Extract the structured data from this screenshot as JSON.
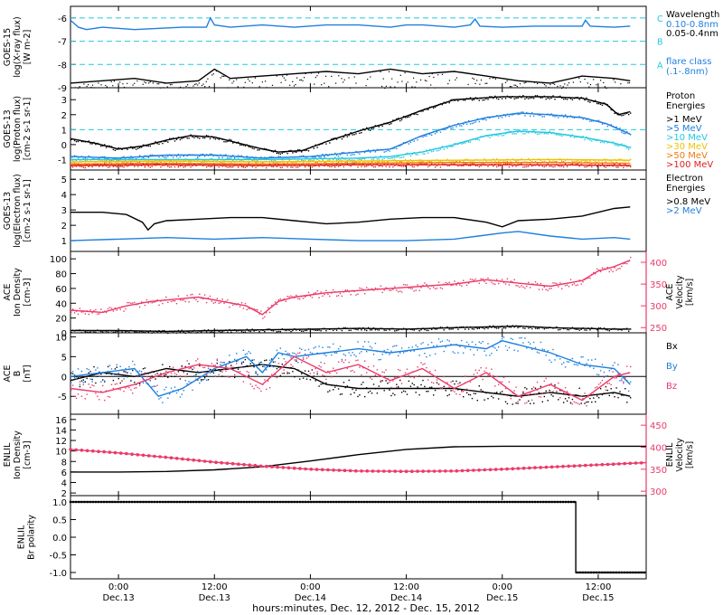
{
  "figure": {
    "xaxis_caption": "hours:minutes, Dec. 12, 2012 - Dec. 15, 2012",
    "x_ticks": [
      {
        "x": -18,
        "time": "0:00",
        "date": "Dec.13"
      },
      {
        "x": -6,
        "time": "12:00",
        "date": "Dec.13"
      },
      {
        "x": 6,
        "time": "0:00",
        "date": "Dec.14"
      },
      {
        "x": 18,
        "time": "12:00",
        "date": "Dec.14"
      },
      {
        "x": 30,
        "time": "0:00",
        "date": "Dec.15"
      },
      {
        "x": 42,
        "time": "12:00",
        "date": "Dec.15"
      }
    ]
  },
  "colors": {
    "black": "#000000",
    "blue": "#1e7fe0",
    "pink": "#ea3a6a",
    "cyan": "#22c8e0",
    "teal": "#0ab3a0",
    "green": "#70d040",
    "yellow": "#f0c000",
    "orange": "#f07a10",
    "red": "#e02020"
  },
  "chart_data": [
    {
      "type": "line",
      "id": "goes15-xray",
      "ylabel_lines": [
        "GOES-15",
        "log(X-ray flux)",
        "[W m-2]"
      ],
      "xlim": [
        -24,
        48
      ],
      "ylim": [
        -9,
        -5.5
      ],
      "y_ticks": [
        -9,
        -8,
        -7,
        -6
      ],
      "reference_lines": [
        {
          "y": -6,
          "label": "C"
        },
        {
          "y": -7,
          "label": "B"
        },
        {
          "y": -8,
          "label": "A"
        }
      ],
      "legend": {
        "title": "Wavelength",
        "entries": [
          {
            "label": "0.10-0.8nm",
            "color": "blue"
          },
          {
            "label": "0.05-0.4nm",
            "color": "black"
          }
        ],
        "note_lines": [
          "flare class",
          "(.1-.8nm)"
        ]
      },
      "series": [
        {
          "name": "0.10-0.8nm",
          "color": "blue",
          "x": [
            -24,
            -23,
            -22,
            -20,
            -16,
            -10,
            -7,
            -6.5,
            -6,
            -4,
            0,
            4,
            8,
            12,
            16,
            18,
            20,
            24,
            26,
            26.6,
            27.2,
            30,
            34,
            38,
            40,
            40.4,
            41,
            44,
            46
          ],
          "y": [
            -6.1,
            -6.4,
            -6.5,
            -6.4,
            -6.5,
            -6.4,
            -6.4,
            -6.0,
            -6.3,
            -6.4,
            -6.3,
            -6.4,
            -6.3,
            -6.3,
            -6.4,
            -6.3,
            -6.3,
            -6.4,
            -6.3,
            -6.05,
            -6.35,
            -6.4,
            -6.35,
            -6.35,
            -6.35,
            -6.1,
            -6.35,
            -6.4,
            -6.35
          ]
        },
        {
          "name": "0.05-0.4nm",
          "color": "black",
          "x": [
            -24,
            -20,
            -16,
            -12,
            -8,
            -6,
            -4,
            0,
            4,
            8,
            12,
            16,
            20,
            24,
            28,
            32,
            36,
            40,
            44,
            46
          ],
          "y": [
            -8.8,
            -8.7,
            -8.6,
            -8.8,
            -8.7,
            -8.2,
            -8.6,
            -8.5,
            -8.4,
            -8.3,
            -8.4,
            -8.2,
            -8.4,
            -8.3,
            -8.5,
            -8.7,
            -8.8,
            -8.5,
            -8.6,
            -8.7
          ]
        }
      ]
    },
    {
      "type": "line",
      "id": "goes13-proton",
      "ylabel_lines": [
        "GOES-13",
        "log(Proton flux)",
        "[cm-2 s-1 sr-1]"
      ],
      "xlim": [
        -24,
        48
      ],
      "ylim": [
        -1.7,
        3.8
      ],
      "y_ticks": [
        -1,
        0,
        1,
        2,
        3
      ],
      "reference_lines": [
        {
          "y": 1,
          "label": ""
        }
      ],
      "legend": {
        "title_lines": [
          "Proton",
          "Energies"
        ],
        "entries": [
          {
            "label": ">1 MeV",
            "color": "black"
          },
          {
            "label": ">5 MeV",
            "color": "blue"
          },
          {
            "label": ">10 MeV",
            "color": "cyan"
          },
          {
            "label": ">30 MeV",
            "color": "yellow"
          },
          {
            "label": ">50 MeV",
            "color": "orange"
          },
          {
            "label": ">100 MeV",
            "color": "red"
          }
        ]
      },
      "series": [
        {
          "name": ">1 MeV",
          "color": "black",
          "x": [
            -24,
            -21,
            -18,
            -15,
            -12,
            -9,
            -6,
            -3,
            0,
            2,
            5,
            8,
            12,
            16,
            20,
            24,
            27,
            30,
            33,
            36,
            40,
            43,
            44.5,
            46
          ],
          "y": [
            0.4,
            0.1,
            -0.3,
            -0.1,
            0.3,
            0.6,
            0.5,
            0.1,
            -0.3,
            -0.5,
            -0.4,
            0.2,
            0.9,
            1.5,
            2.3,
            3.0,
            3.1,
            3.2,
            3.2,
            3.2,
            3.1,
            2.7,
            2.0,
            2.2
          ]
        },
        {
          "name": ">5 MeV",
          "color": "blue",
          "x": [
            -24,
            -18,
            -12,
            -6,
            0,
            6,
            12,
            16,
            20,
            24,
            28,
            32,
            36,
            40,
            43,
            46
          ],
          "y": [
            -0.8,
            -0.9,
            -0.7,
            -0.7,
            -0.9,
            -0.8,
            -0.5,
            -0.3,
            0.6,
            1.3,
            1.8,
            2.1,
            2.0,
            1.8,
            1.4,
            0.7
          ]
        },
        {
          "name": ">10 MeV",
          "color": "cyan",
          "x": [
            -24,
            -12,
            0,
            12,
            16,
            20,
            24,
            28,
            32,
            36,
            40,
            44,
            46
          ],
          "y": [
            -1.0,
            -1.0,
            -1.0,
            -0.9,
            -0.8,
            -0.5,
            0.0,
            0.6,
            0.9,
            0.8,
            0.5,
            0.1,
            -0.2
          ]
        },
        {
          "name": ">30 MeV",
          "color": "yellow",
          "x": [
            -24,
            -12,
            0,
            12,
            24,
            36,
            46
          ],
          "y": [
            -1.15,
            -1.1,
            -1.15,
            -1.1,
            -1.05,
            -1.0,
            -1.05
          ]
        },
        {
          "name": ">50 MeV",
          "color": "orange",
          "x": [
            -24,
            -12,
            0,
            12,
            24,
            36,
            46
          ],
          "y": [
            -1.3,
            -1.25,
            -1.3,
            -1.25,
            -1.2,
            -1.2,
            -1.25
          ]
        },
        {
          "name": ">100 MeV",
          "color": "red",
          "x": [
            -24,
            -12,
            0,
            12,
            24,
            36,
            46
          ],
          "y": [
            -1.4,
            -1.35,
            -1.4,
            -1.35,
            -1.35,
            -1.35,
            -1.4
          ]
        }
      ]
    },
    {
      "type": "line",
      "id": "goes13-electron",
      "ylabel_lines": [
        "GOES-13",
        "log(Electron flux)",
        "[cm-2 s-1 sr-1]"
      ],
      "xlim": [
        -24,
        48
      ],
      "ylim": [
        0.3,
        5.6
      ],
      "y_ticks": [
        1,
        2,
        3,
        4,
        5
      ],
      "reference_lines": [
        {
          "y": 5,
          "label": ""
        }
      ],
      "legend": {
        "title_lines": [
          "Electron",
          "Energies"
        ],
        "entries": [
          {
            "label": ">0.8 MeV",
            "color": "black"
          },
          {
            "label": ">2 MeV",
            "color": "blue"
          }
        ]
      },
      "series": [
        {
          "name": ">0.8 MeV",
          "color": "black",
          "x": [
            -24,
            -20,
            -17,
            -15,
            -14.3,
            -13.5,
            -12,
            -8,
            -4,
            0,
            4,
            8,
            12,
            16,
            20,
            24,
            28,
            30,
            32,
            36,
            40,
            44,
            46
          ],
          "y": [
            2.85,
            2.85,
            2.7,
            2.2,
            1.7,
            2.1,
            2.3,
            2.4,
            2.5,
            2.5,
            2.3,
            2.1,
            2.2,
            2.4,
            2.5,
            2.5,
            2.2,
            1.9,
            2.3,
            2.4,
            2.6,
            3.1,
            3.2
          ]
        },
        {
          "name": ">2 MeV",
          "color": "blue",
          "x": [
            -24,
            -18,
            -12,
            -6,
            0,
            6,
            12,
            18,
            24,
            27,
            30,
            32,
            36,
            40,
            44,
            46
          ],
          "y": [
            1.0,
            1.1,
            1.2,
            1.1,
            1.2,
            1.1,
            1.0,
            1.0,
            1.1,
            1.3,
            1.5,
            1.6,
            1.3,
            1.1,
            1.2,
            1.1
          ]
        }
      ]
    },
    {
      "type": "line",
      "id": "ace-plasma",
      "ylabel_lines": [
        "ACE",
        "Ion Density",
        "[cm-3]"
      ],
      "ylabel2_lines": [
        "ACE",
        "Velocity",
        "[km/s]"
      ],
      "xlim": [
        -24,
        48
      ],
      "ylim": [
        0,
        110
      ],
      "y_ticks": [
        0,
        20,
        40,
        60,
        80,
        100
      ],
      "ylim2": [
        238,
        425
      ],
      "y2_ticks": [
        250,
        300,
        350,
        400
      ],
      "series": [
        {
          "name": "Ion Density",
          "color": "black",
          "axis": "left",
          "x": [
            -24,
            -18,
            -12,
            -6,
            0,
            6,
            12,
            18,
            24,
            28,
            32,
            36,
            40,
            44,
            46
          ],
          "y": [
            3,
            3,
            2,
            3,
            4,
            5,
            6,
            5,
            7,
            8,
            9,
            7,
            6,
            5,
            5
          ]
        },
        {
          "name": "Velocity",
          "color": "pink",
          "axis": "right",
          "x": [
            -24,
            -20,
            -17,
            -14,
            -11,
            -8,
            -5,
            -2,
            0,
            1,
            2,
            4,
            8,
            12,
            16,
            20,
            24,
            28,
            32,
            36,
            40,
            42,
            44,
            46
          ],
          "y": [
            290,
            285,
            300,
            310,
            315,
            320,
            310,
            300,
            280,
            295,
            310,
            320,
            330,
            335,
            340,
            345,
            350,
            360,
            352,
            345,
            358,
            380,
            390,
            405
          ]
        }
      ]
    },
    {
      "type": "line",
      "id": "ace-imf",
      "ylabel_lines": [
        "ACE",
        "B",
        "[nT]"
      ],
      "xlim": [
        -24,
        48
      ],
      "ylim": [
        -9.5,
        11
      ],
      "y_ticks": [
        -5,
        0,
        5,
        10
      ],
      "reference_lines": [
        {
          "y": 0,
          "label": ""
        }
      ],
      "legend": {
        "entries": [
          {
            "label": "Bx",
            "color": "black"
          },
          {
            "label": "By",
            "color": "blue"
          },
          {
            "label": "Bz",
            "color": "pink"
          }
        ]
      },
      "series": [
        {
          "name": "Bx",
          "color": "black",
          "x": [
            -24,
            -20,
            -16,
            -12,
            -8,
            -4,
            0,
            4,
            8,
            12,
            16,
            20,
            24,
            28,
            32,
            36,
            40,
            44,
            46
          ],
          "y": [
            -1,
            1,
            0,
            2,
            1,
            2,
            3,
            2,
            -2,
            -3,
            -3,
            -3,
            -3,
            -4,
            -5,
            -4,
            -5,
            -4,
            -5
          ]
        },
        {
          "name": "By",
          "color": "blue",
          "x": [
            -24,
            -20,
            -16,
            -13,
            -10,
            -6,
            -2,
            0,
            2,
            4,
            8,
            12,
            16,
            20,
            24,
            28,
            30,
            32,
            36,
            40,
            44,
            46
          ],
          "y": [
            0,
            1,
            2,
            -5,
            -3,
            2,
            5,
            1,
            6,
            5,
            6,
            7,
            6,
            7,
            8,
            7,
            9,
            8,
            6,
            3,
            2,
            -2
          ]
        },
        {
          "name": "Bz",
          "color": "pink",
          "x": [
            -24,
            -20,
            -16,
            -12,
            -8,
            -4,
            0,
            4,
            8,
            12,
            16,
            20,
            24,
            28,
            32,
            36,
            40,
            44,
            46
          ],
          "y": [
            -3,
            -4,
            -2,
            1,
            3,
            2,
            -2,
            5,
            1,
            3,
            -1,
            2,
            -3,
            1,
            -5,
            -2,
            -6,
            0,
            1
          ]
        }
      ]
    },
    {
      "type": "line",
      "id": "enlil-plasma",
      "ylabel_lines": [
        "ENLIL",
        "Ion Density",
        "[cm-3]"
      ],
      "ylabel2_lines": [
        "ENLIL",
        "Velocity",
        "[km/s]"
      ],
      "xlim": [
        -24,
        48
      ],
      "ylim": [
        1.5,
        17
      ],
      "y_ticks": [
        2,
        4,
        6,
        8,
        10,
        12,
        14,
        16
      ],
      "ylim2": [
        290,
        475
      ],
      "y2_ticks": [
        300,
        350,
        400,
        450
      ],
      "series": [
        {
          "name": "Ion Density",
          "color": "black",
          "axis": "left",
          "x": [
            -24,
            -18,
            -12,
            -6,
            0,
            6,
            12,
            18,
            24,
            30,
            36,
            42,
            48
          ],
          "y": [
            6.0,
            6.0,
            6.1,
            6.4,
            7.0,
            8.1,
            9.3,
            10.3,
            10.8,
            10.9,
            10.9,
            10.9,
            10.9
          ]
        },
        {
          "name": "Velocity",
          "color": "pink",
          "axis": "right",
          "x": [
            -24,
            -18,
            -12,
            -6,
            0,
            6,
            12,
            18,
            24,
            30,
            36,
            42,
            48
          ],
          "y": [
            395,
            387,
            377,
            366,
            357,
            350,
            346,
            345,
            346,
            350,
            355,
            360,
            365
          ]
        }
      ]
    },
    {
      "type": "line",
      "id": "enlil-polarity",
      "ylabel_lines": [
        "ENLIL",
        "Br polarity"
      ],
      "xlim": [
        -24,
        48
      ],
      "ylim": [
        -1.18,
        1.18
      ],
      "y_ticks": [
        -1.0,
        -0.5,
        0.0,
        0.5,
        1.0
      ],
      "y_tick_labels": [
        "-1.0",
        "-0.5",
        "0.0",
        "0.5",
        "1.0"
      ],
      "series": [
        {
          "name": "Br polarity",
          "color": "black",
          "x": [
            -24,
            39.2,
            39.2,
            48
          ],
          "y": [
            1,
            1,
            -1,
            -1
          ]
        }
      ]
    }
  ]
}
